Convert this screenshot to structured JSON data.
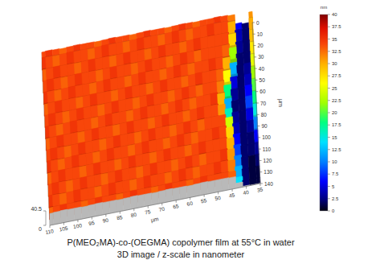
{
  "chart_data": {
    "type": "surface",
    "title": "P(MEO₂MA)-co-(OEGMA) copolymer film at 55°C in water",
    "subtitle": "3D image / z-scale in nanometer",
    "xlabel": "µm",
    "ylabel": "µm",
    "color_label": "nm",
    "x": [
      110,
      107.5,
      105,
      102.5,
      100,
      97.5,
      95,
      92.5,
      90,
      87.5,
      85,
      82.5,
      80,
      77.5,
      75,
      72.5,
      70,
      67.5,
      65,
      62.5,
      60,
      57.5,
      55,
      52.5,
      50,
      47.5,
      45,
      42.5,
      40,
      37.5,
      35
    ],
    "y": [
      0,
      10,
      20,
      30,
      40,
      50,
      60,
      70,
      80,
      90,
      100,
      110,
      120,
      130,
      140
    ],
    "xlim": [
      110,
      35
    ],
    "ylim": [
      140,
      0
    ],
    "zlim": [
      0,
      40.5
    ],
    "xticks": [
      110,
      105,
      100,
      95,
      90,
      85,
      80,
      75,
      70,
      65,
      60,
      55,
      50,
      45,
      40,
      35
    ],
    "yticks": [
      0,
      10,
      20,
      30,
      40,
      50,
      60,
      70,
      80,
      90,
      100,
      110,
      120,
      130,
      140
    ],
    "zticks": [
      0,
      40.5
    ],
    "z": [
      [
        34,
        35,
        34,
        33,
        34,
        35,
        34,
        34,
        33,
        34,
        35,
        34,
        34,
        33,
        34,
        35,
        34,
        34,
        33,
        34,
        35,
        34,
        33,
        34,
        34,
        35,
        34,
        32,
        6,
        2,
        31
      ],
      [
        35,
        34,
        33,
        34,
        35,
        34,
        34,
        33,
        34,
        35,
        34,
        34,
        33,
        34,
        35,
        34,
        34,
        33,
        34,
        35,
        34,
        33,
        34,
        34,
        35,
        34,
        34,
        30,
        4,
        2,
        30
      ],
      [
        33,
        34,
        35,
        34,
        34,
        33,
        34,
        35,
        34,
        34,
        33,
        34,
        35,
        34,
        34,
        33,
        34,
        35,
        34,
        34,
        33,
        34,
        35,
        34,
        34,
        34,
        34,
        28,
        3,
        2,
        29
      ],
      [
        34,
        35,
        34,
        33,
        34,
        35,
        34,
        34,
        33,
        34,
        35,
        34,
        34,
        33,
        34,
        35,
        34,
        34,
        33,
        34,
        35,
        34,
        33,
        34,
        34,
        34,
        33,
        22,
        2,
        2,
        27
      ],
      [
        35,
        34,
        33,
        34,
        35,
        34,
        34,
        33,
        34,
        35,
        34,
        34,
        33,
        34,
        35,
        34,
        34,
        33,
        34,
        35,
        34,
        33,
        34,
        34,
        35,
        34,
        30,
        12,
        2,
        3,
        25
      ],
      [
        33,
        34,
        35,
        34,
        34,
        33,
        34,
        35,
        34,
        34,
        33,
        34,
        35,
        34,
        34,
        33,
        34,
        35,
        34,
        34,
        33,
        34,
        35,
        34,
        34,
        33,
        26,
        5,
        2,
        4,
        22
      ],
      [
        34,
        35,
        34,
        33,
        34,
        35,
        34,
        34,
        33,
        34,
        35,
        34,
        34,
        33,
        34,
        35,
        34,
        34,
        33,
        34,
        35,
        34,
        33,
        34,
        34,
        32,
        18,
        3,
        2,
        6,
        20
      ],
      [
        35,
        34,
        33,
        34,
        35,
        34,
        34,
        33,
        34,
        35,
        34,
        34,
        33,
        34,
        35,
        34,
        34,
        33,
        34,
        35,
        34,
        33,
        34,
        34,
        35,
        30,
        12,
        2,
        2,
        8,
        18
      ],
      [
        33,
        34,
        35,
        34,
        34,
        33,
        34,
        35,
        34,
        34,
        33,
        34,
        35,
        34,
        34,
        33,
        34,
        35,
        34,
        34,
        33,
        34,
        35,
        34,
        34,
        31,
        16,
        3,
        2,
        5,
        15
      ],
      [
        34,
        35,
        34,
        33,
        34,
        35,
        34,
        34,
        33,
        34,
        35,
        34,
        34,
        33,
        34,
        35,
        34,
        34,
        33,
        34,
        35,
        34,
        33,
        34,
        34,
        34,
        24,
        4,
        2,
        3,
        10
      ],
      [
        35,
        34,
        33,
        34,
        35,
        34,
        34,
        33,
        34,
        35,
        34,
        34,
        33,
        34,
        35,
        34,
        34,
        33,
        34,
        35,
        34,
        33,
        34,
        34,
        35,
        34,
        28,
        6,
        2,
        2,
        6
      ],
      [
        33,
        34,
        35,
        34,
        34,
        33,
        34,
        35,
        34,
        34,
        33,
        34,
        35,
        34,
        34,
        33,
        34,
        35,
        34,
        34,
        33,
        34,
        35,
        34,
        34,
        34,
        30,
        8,
        2,
        2,
        3
      ],
      [
        34,
        35,
        34,
        33,
        34,
        35,
        34,
        34,
        33,
        34,
        35,
        34,
        34,
        33,
        34,
        35,
        34,
        34,
        33,
        34,
        35,
        34,
        33,
        34,
        34,
        35,
        31,
        10,
        2,
        1,
        2
      ],
      [
        35,
        34,
        33,
        34,
        35,
        34,
        34,
        33,
        34,
        35,
        34,
        34,
        33,
        34,
        35,
        34,
        34,
        33,
        34,
        35,
        34,
        33,
        34,
        34,
        35,
        34,
        32,
        12,
        2,
        1,
        1
      ],
      [
        33,
        34,
        35,
        34,
        34,
        33,
        34,
        35,
        34,
        34,
        33,
        34,
        35,
        34,
        34,
        33,
        34,
        35,
        34,
        34,
        33,
        34,
        35,
        34,
        34,
        34,
        33,
        14,
        2,
        1,
        1
      ]
    ],
    "color_range": [
      0,
      40
    ],
    "color_ticks": [
      0,
      2.5,
      5,
      7.5,
      10,
      12.5,
      15,
      17.5,
      20,
      22.5,
      25,
      27.5,
      30,
      32.5,
      35,
      37.5,
      40
    ]
  }
}
